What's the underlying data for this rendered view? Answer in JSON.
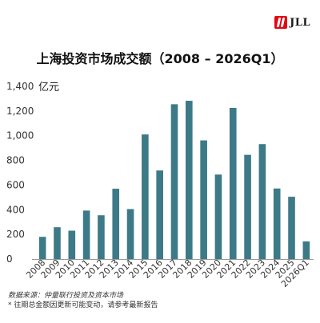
{
  "logo": {
    "text": "JLL"
  },
  "chart_data": {
    "type": "bar",
    "title": "上海投资市场成交额（2008 – 2026Q1）",
    "ylabel": "亿元",
    "xlabel": "",
    "ylim": [
      0,
      1400
    ],
    "yticks": [
      0,
      200,
      400,
      600,
      800,
      1000,
      1200,
      1400
    ],
    "ytick_labels": [
      "0",
      "200",
      "400",
      "600",
      "800",
      "1,000",
      "1,200",
      "1,400"
    ],
    "categories": [
      "2008",
      "2009",
      "2010",
      "2011",
      "2012",
      "2013",
      "2014",
      "2015",
      "2016",
      "2017",
      "2018",
      "2019",
      "2020",
      "2021",
      "2022",
      "2023",
      "2024",
      "2025",
      "2026Q1"
    ],
    "values": [
      180,
      258,
      230,
      393,
      355,
      570,
      405,
      1010,
      718,
      1255,
      1283,
      962,
      685,
      1225,
      845,
      932,
      572,
      505,
      143
    ],
    "bar_color": "#3d7a88",
    "grid": false
  },
  "notes": {
    "source": "数据来源：仲量联行投资及资本市场",
    "footnote": "* 往期总金额因更新可能变动，请参考最新报告"
  }
}
